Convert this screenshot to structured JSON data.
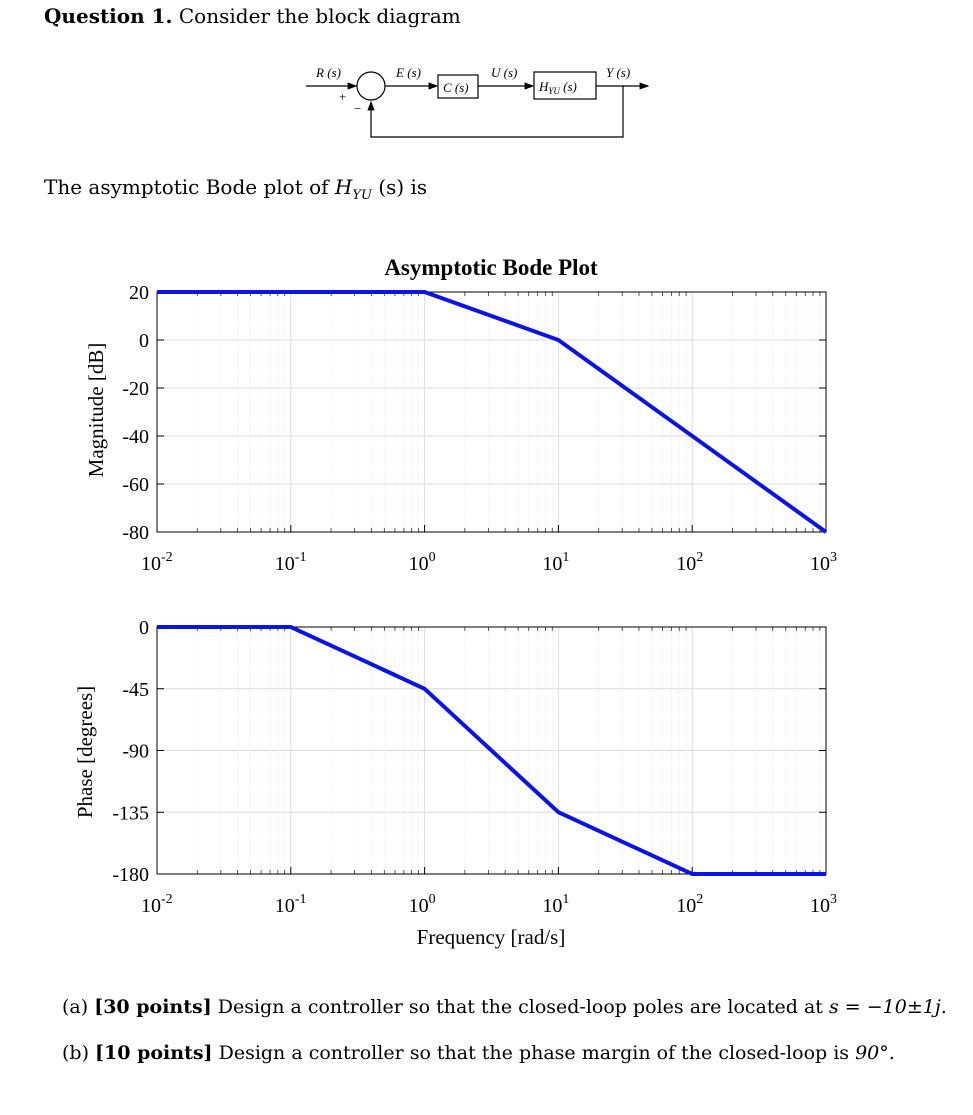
{
  "question": {
    "label": "Question 1.",
    "intro": "Consider the block diagram"
  },
  "block_diagram": {
    "R": "R (s)",
    "E": "E (s)",
    "U": "U (s)",
    "Y": "Y (s)",
    "controller": "C (s)",
    "plant": "H",
    "plant_sub": "YU",
    "plant_arg": " (s)",
    "plus": "+",
    "minus": "−"
  },
  "bode_intro": {
    "prefix": "The asymptotic Bode plot of ",
    "H": "H",
    "sub": "YU",
    "suffix": " (s) is"
  },
  "chart_data": [
    {
      "type": "line",
      "title": "Asymptotic Bode Plot",
      "ylabel": "Magnitude [dB]",
      "xlabel": "",
      "x_scale": "log",
      "xlim": [
        0.01,
        1000
      ],
      "ylim": [
        -80,
        20
      ],
      "xticks": [
        0.01,
        0.1,
        1,
        10,
        100,
        1000
      ],
      "xtick_base": [
        "10",
        "10",
        "10",
        "10",
        "10",
        "10"
      ],
      "xtick_exp": [
        "-2",
        "-1",
        "0",
        "1",
        "2",
        "3"
      ],
      "yticks": [
        20,
        0,
        -20,
        -40,
        -60,
        -80
      ],
      "ytick_labels": [
        "20",
        "0",
        "-20",
        "-40",
        "-60",
        "-80"
      ],
      "grid": true,
      "color": "#0a14e6",
      "x": [
        0.01,
        1,
        10,
        1000
      ],
      "y": [
        20,
        20,
        0,
        -80
      ]
    },
    {
      "type": "line",
      "title": "",
      "ylabel": "Phase [degrees]",
      "xlabel": "Frequency [rad/s]",
      "x_scale": "log",
      "xlim": [
        0.01,
        1000
      ],
      "ylim": [
        -180,
        0
      ],
      "xticks": [
        0.01,
        0.1,
        1,
        10,
        100,
        1000
      ],
      "xtick_base": [
        "10",
        "10",
        "10",
        "10",
        "10",
        "10"
      ],
      "xtick_exp": [
        "-2",
        "-1",
        "0",
        "1",
        "2",
        "3"
      ],
      "yticks": [
        0,
        -45,
        -90,
        -135,
        -180
      ],
      "ytick_labels": [
        "0",
        "-45",
        "-90",
        "-135",
        "-180"
      ],
      "grid": true,
      "color": "#0a14e6",
      "x": [
        0.01,
        0.1,
        1,
        10,
        100,
        1000
      ],
      "y": [
        0,
        0,
        -45,
        -135,
        -180,
        -180
      ]
    }
  ],
  "parts": [
    {
      "letter": "(a)",
      "points": "[30 points]",
      "text": " Design a controller so that the closed-loop poles are located at ",
      "math": "s = −10±1j."
    },
    {
      "letter": "(b)",
      "points": "[10 points]",
      "text": " Design a controller so that the phase margin of the closed-loop is ",
      "math": "90°."
    }
  ]
}
